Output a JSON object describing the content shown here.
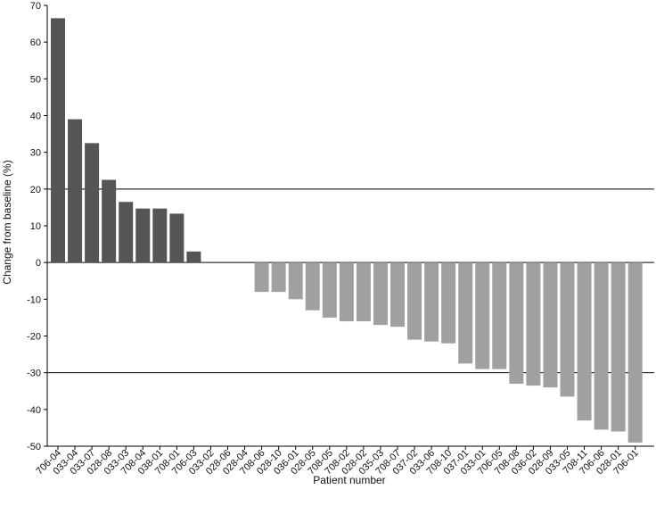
{
  "chart_data": {
    "type": "bar",
    "xlabel": "Patient number",
    "ylabel": "Change from baseline (%)",
    "ylim": [
      -50,
      70
    ],
    "yticks": [
      70,
      60,
      50,
      40,
      30,
      20,
      10,
      0,
      -10,
      -20,
      -30,
      -40,
      -50
    ],
    "reference_lines": [
      20,
      0,
      -30
    ],
    "grid": false,
    "colors": {
      "increase": "#555555",
      "decrease": "#a0a0a0",
      "axis": "#000000"
    },
    "categories": [
      "706-04",
      "033-04",
      "033-07",
      "028-08",
      "033-03",
      "708-04",
      "038-01",
      "708-01",
      "706-03",
      "033-02",
      "028-06",
      "028-04",
      "708-06",
      "028-10",
      "036-01",
      "028-05",
      "708-05",
      "708-02",
      "028-02",
      "035-03",
      "708-07",
      "037-02",
      "033-06",
      "708-10",
      "037-01",
      "033-01",
      "706-05",
      "708-08",
      "036-02",
      "028-09",
      "033-05",
      "708-11",
      "706-06",
      "028-01",
      "706-01"
    ],
    "values": [
      66.5,
      39,
      32.5,
      22.5,
      16.5,
      14.7,
      14.7,
      13.3,
      3,
      0,
      0,
      0,
      -8,
      -8,
      -10,
      -13,
      -15,
      -16,
      -16,
      -17,
      -17.5,
      -21,
      -21.5,
      -22,
      -27.5,
      -29,
      -29,
      -33,
      -33.5,
      -34,
      -36.5,
      -43,
      -45.5,
      -46,
      -49
    ]
  }
}
